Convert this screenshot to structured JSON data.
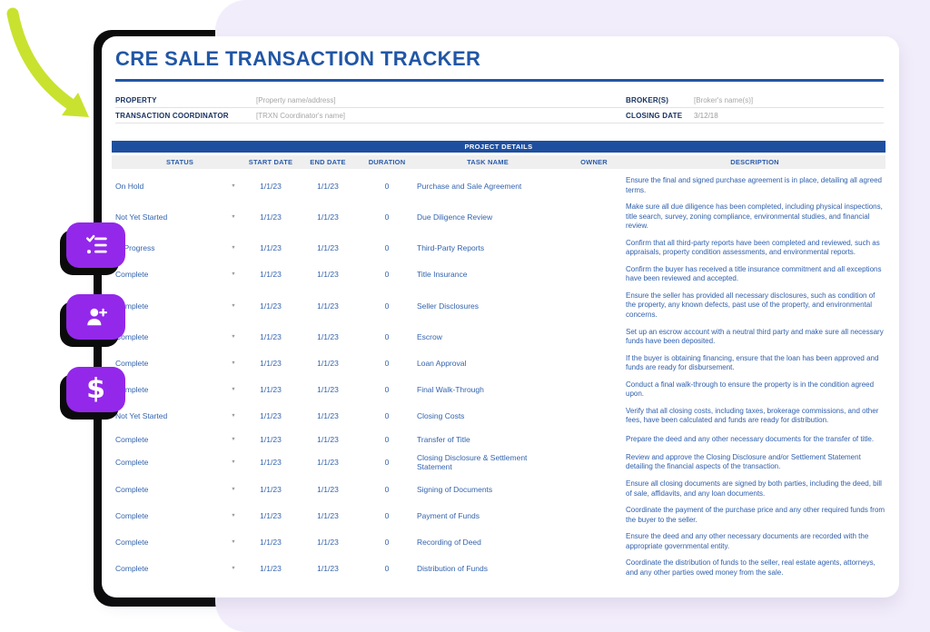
{
  "header": {
    "title": "CRE SALE TRANSACTION TRACKER",
    "fields": {
      "property_label": "PROPERTY",
      "property_value": "[Property name/address]",
      "coordinator_label": "TRANSACTION COORDINATOR",
      "coordinator_value": "[TRXN Coordinator's name]",
      "broker_label": "BROKER(S)",
      "broker_value": "[Broker's name(s)]",
      "closing_label": "CLOSING DATE",
      "closing_value": "3/12/18"
    }
  },
  "table": {
    "banner": "PROJECT DETAILS",
    "columns": [
      "STATUS",
      "START DATE",
      "END DATE",
      "DURATION",
      "TASK NAME",
      "OWNER",
      "DESCRIPTION"
    ],
    "rows": [
      {
        "status": "On Hold",
        "start": "1/1/23",
        "end": "1/1/23",
        "duration": "0",
        "task": "Purchase and Sale Agreement",
        "owner": "",
        "description": "Ensure the final and signed purchase agreement is in place, detailing all agreed terms."
      },
      {
        "status": "Not Yet Started",
        "start": "1/1/23",
        "end": "1/1/23",
        "duration": "0",
        "task": "Due Diligence Review",
        "owner": "",
        "description": "Make sure all due diligence has been completed, including physical inspections, title search, survey, zoning compliance, environmental studies, and financial review."
      },
      {
        "status": "In Progress",
        "start": "1/1/23",
        "end": "1/1/23",
        "duration": "0",
        "task": "Third-Party Reports",
        "owner": "",
        "description": "Confirm that all third-party reports have been completed and reviewed, such as appraisals, property condition assessments, and environmental reports."
      },
      {
        "status": "Complete",
        "start": "1/1/23",
        "end": "1/1/23",
        "duration": "0",
        "task": "Title Insurance",
        "owner": "",
        "description": "Confirm the buyer has received a title insurance commitment and all exceptions have been reviewed and accepted."
      },
      {
        "status": "Complete",
        "start": "1/1/23",
        "end": "1/1/23",
        "duration": "0",
        "task": "Seller Disclosures",
        "owner": "",
        "description": "Ensure the seller has provided all necessary disclosures, such as condition of the property, any known defects, past use of the property, and environmental concerns."
      },
      {
        "status": "Complete",
        "start": "1/1/23",
        "end": "1/1/23",
        "duration": "0",
        "task": "Escrow",
        "owner": "",
        "description": "Set up an escrow account with a neutral third party and make sure all necessary funds have been deposited."
      },
      {
        "status": "Complete",
        "start": "1/1/23",
        "end": "1/1/23",
        "duration": "0",
        "task": "Loan Approval",
        "owner": "",
        "description": "If the buyer is obtaining financing, ensure that the loan has been approved and funds are ready for disbursement."
      },
      {
        "status": "Complete",
        "start": "1/1/23",
        "end": "1/1/23",
        "duration": "0",
        "task": "Final Walk-Through",
        "owner": "",
        "description": "Conduct a final walk-through to ensure the property is in the condition agreed upon."
      },
      {
        "status": "Not Yet Started",
        "start": "1/1/23",
        "end": "1/1/23",
        "duration": "0",
        "task": "Closing Costs",
        "owner": "",
        "description": "Verify that all closing costs, including taxes, brokerage commissions, and other fees, have been calculated and funds are ready for distribution."
      },
      {
        "status": "Complete",
        "start": "1/1/23",
        "end": "1/1/23",
        "duration": "0",
        "task": "Transfer of Title",
        "owner": "",
        "description": "Prepare the deed and any other necessary documents for the transfer of title."
      },
      {
        "status": "Complete",
        "start": "1/1/23",
        "end": "1/1/23",
        "duration": "0",
        "task": "Closing Disclosure & Settlement Statement",
        "owner": "",
        "description": "Review and approve the Closing Disclosure and/or Settlement Statement detailing the financial aspects of the transaction."
      },
      {
        "status": "Complete",
        "start": "1/1/23",
        "end": "1/1/23",
        "duration": "0",
        "task": "Signing of Documents",
        "owner": "",
        "description": "Ensure all closing documents are signed by both parties, including the deed, bill of sale, affidavits, and any loan documents."
      },
      {
        "status": "Complete",
        "start": "1/1/23",
        "end": "1/1/23",
        "duration": "0",
        "task": "Payment of Funds",
        "owner": "",
        "description": "Coordinate the payment of the purchase price and any other required funds from the buyer to the seller."
      },
      {
        "status": "Complete",
        "start": "1/1/23",
        "end": "1/1/23",
        "duration": "0",
        "task": "Recording of Deed",
        "owner": "",
        "description": " Ensure the deed and any other necessary documents are recorded with the appropriate governmental entity."
      },
      {
        "status": "Complete",
        "start": "1/1/23",
        "end": "1/1/23",
        "duration": "0",
        "task": "Distribution of Funds",
        "owner": "",
        "description": "Coordinate the distribution of funds to the seller, real estate agents, attorneys, and any other parties owed money from the sale."
      }
    ]
  },
  "side_buttons": [
    {
      "icon": "checklist-icon"
    },
    {
      "icon": "person-add-icon"
    },
    {
      "icon": "dollar-icon"
    }
  ],
  "colors": {
    "accent_blue": "#2156a5",
    "banner_navy": "#1e4f9f",
    "cell_blue": "#3464ae",
    "purple_button": "#9328ea",
    "lavender_bg": "#f2edfb",
    "arrow_green": "#c9e22f",
    "plate_black": "#0c0c0c"
  }
}
